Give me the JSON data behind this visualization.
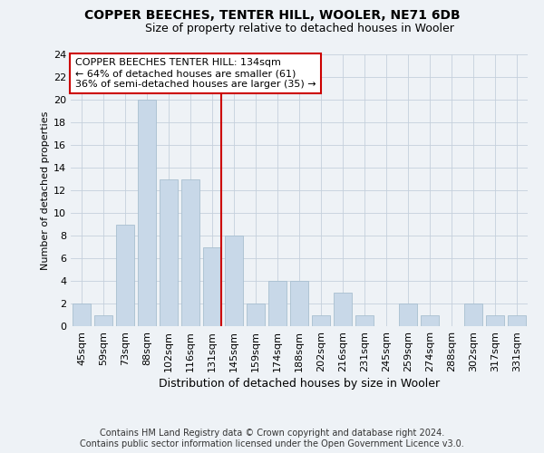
{
  "title1": "COPPER BEECHES, TENTER HILL, WOOLER, NE71 6DB",
  "title2": "Size of property relative to detached houses in Wooler",
  "xlabel": "Distribution of detached houses by size in Wooler",
  "ylabel": "Number of detached properties",
  "categories": [
    "45sqm",
    "59sqm",
    "73sqm",
    "88sqm",
    "102sqm",
    "116sqm",
    "131sqm",
    "145sqm",
    "159sqm",
    "174sqm",
    "188sqm",
    "202sqm",
    "216sqm",
    "231sqm",
    "245sqm",
    "259sqm",
    "274sqm",
    "288sqm",
    "302sqm",
    "317sqm",
    "331sqm"
  ],
  "values": [
    2,
    1,
    9,
    20,
    13,
    13,
    7,
    8,
    2,
    4,
    4,
    1,
    3,
    1,
    0,
    2,
    1,
    0,
    2,
    1,
    1
  ],
  "bar_color": "#c8d8e8",
  "bar_edge_color": "#a8bfd0",
  "vline_color": "#cc0000",
  "annotation_text": "COPPER BEECHES TENTER HILL: 134sqm\n← 64% of detached houses are smaller (61)\n36% of semi-detached houses are larger (35) →",
  "annotation_box_color": "#ffffff",
  "annotation_box_edge_color": "#cc0000",
  "ylim": [
    0,
    24
  ],
  "yticks": [
    0,
    2,
    4,
    6,
    8,
    10,
    12,
    14,
    16,
    18,
    20,
    22,
    24
  ],
  "footer1": "Contains HM Land Registry data © Crown copyright and database right 2024.",
  "footer2": "Contains public sector information licensed under the Open Government Licence v3.0.",
  "bg_color": "#eef2f6",
  "grid_color": "#c5d0dc",
  "title1_fontsize": 10,
  "title2_fontsize": 9,
  "xlabel_fontsize": 9,
  "ylabel_fontsize": 8,
  "tick_fontsize": 8,
  "ann_fontsize": 8,
  "footer_fontsize": 7
}
